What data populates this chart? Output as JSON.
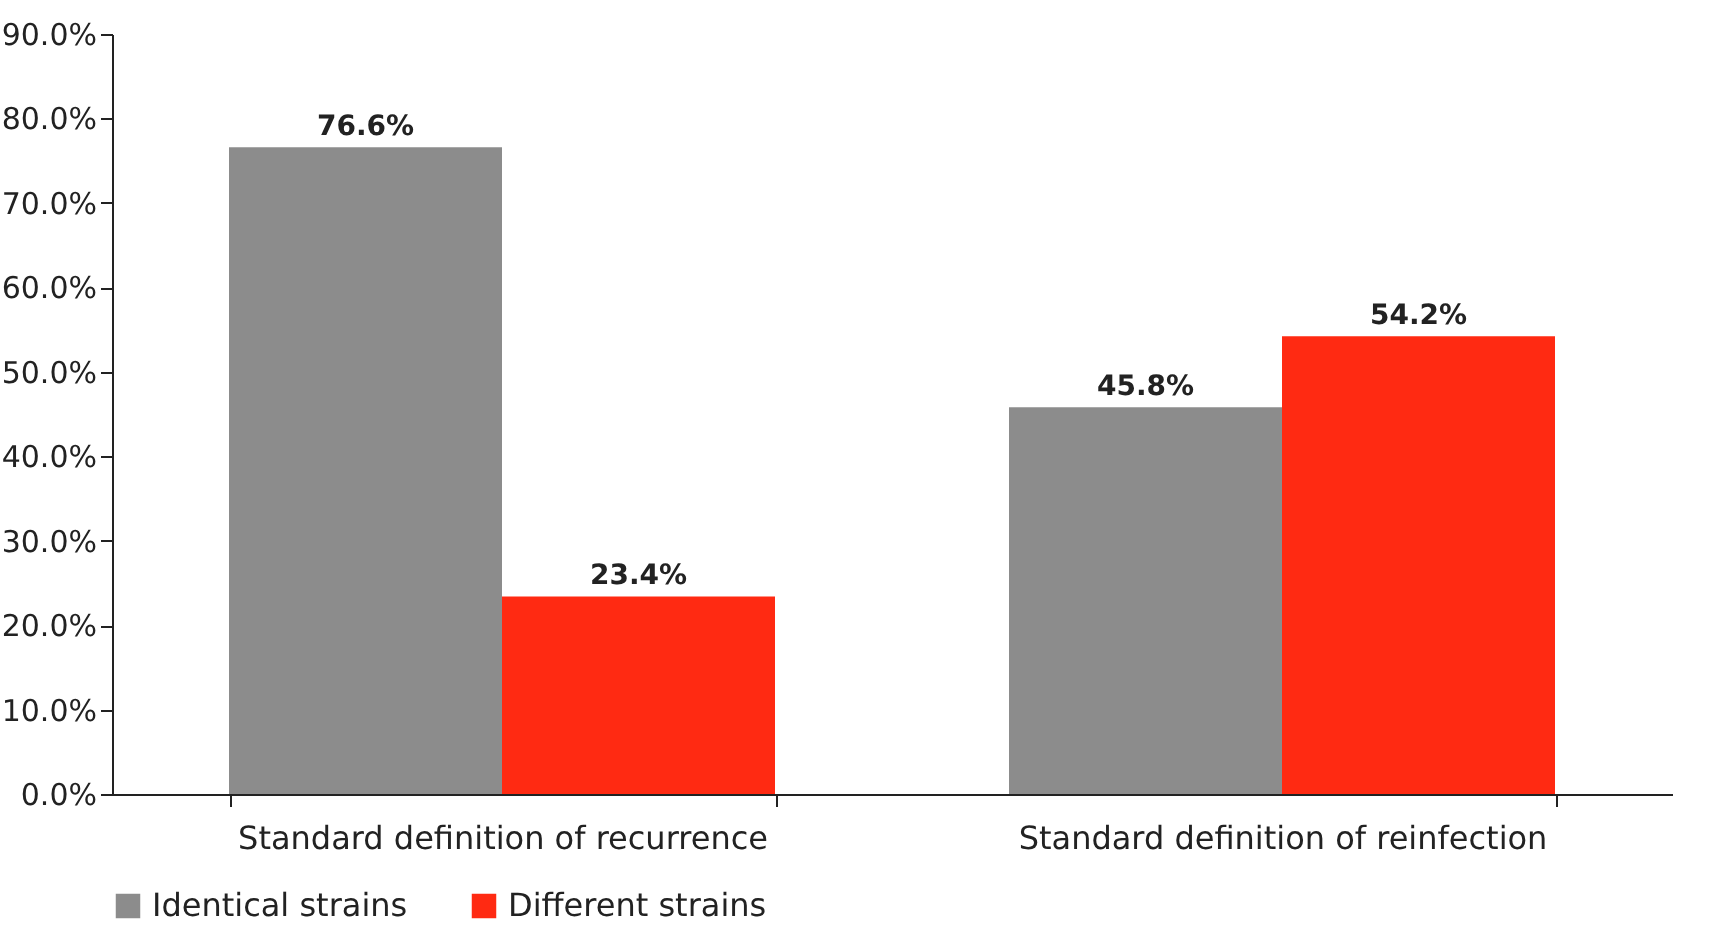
{
  "chart_data": {
    "type": "bar",
    "categories": [
      "Standard definition of recurrence",
      "Standard definition of reinfection"
    ],
    "series": [
      {
        "name": "Identical strains",
        "color": "#8c8c8c",
        "values": [
          76.6,
          45.8
        ],
        "value_labels": [
          "76.6%",
          "45.8%"
        ]
      },
      {
        "name": "Different strains",
        "color": "#ff2a12",
        "values": [
          23.4,
          54.2
        ],
        "value_labels": [
          "23.4%",
          "54.2%"
        ]
      }
    ],
    "ylim": [
      0,
      90
    ],
    "yticks": [
      {
        "value": 0,
        "label": "0.0%"
      },
      {
        "value": 10,
        "label": "10.0%"
      },
      {
        "value": 20,
        "label": "20.0%"
      },
      {
        "value": 30,
        "label": "30.0%"
      },
      {
        "value": 40,
        "label": "40.0%"
      },
      {
        "value": 50,
        "label": "50.0%"
      },
      {
        "value": 60,
        "label": "60.0%"
      },
      {
        "value": 70,
        "label": "70.0%"
      },
      {
        "value": 80,
        "label": "80.0%"
      },
      {
        "value": 90,
        "label": "90.0%"
      }
    ],
    "grid": false,
    "legend": "bottom"
  }
}
